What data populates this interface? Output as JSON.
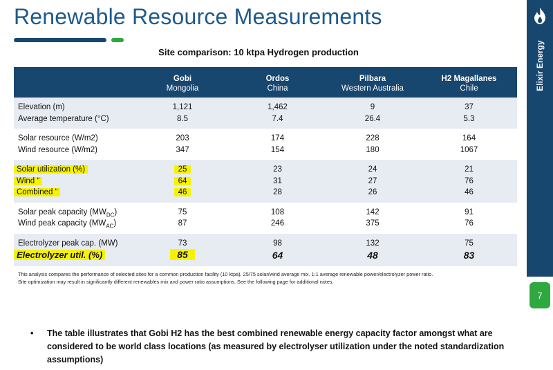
{
  "slide": {
    "title": "Renewable Resource Measurements",
    "caption": "Site comparison: 10 ktpa Hydrogen production",
    "brand": "Elixir Energy",
    "page_number": "7"
  },
  "colors": {
    "navy": "#17466f",
    "title_blue": "#1e5a8c",
    "green": "#2fa93f",
    "row_shade": "#e7ebf2",
    "highlight": "#f7f300"
  },
  "table": {
    "columns": [
      {
        "name": "Gobi",
        "sub": "Mongolia"
      },
      {
        "name": "Ordos",
        "sub": "China"
      },
      {
        "name": "Pilbara",
        "sub": "Western Australia"
      },
      {
        "name": "H2 Magallanes",
        "sub": "Chile"
      }
    ],
    "rows": {
      "elevation": {
        "label": "Elevation (m)",
        "values": [
          "1,121",
          "1,462",
          "9",
          "37"
        ]
      },
      "avg_temp": {
        "label": "Average temperature (°C)",
        "values": [
          "8.5",
          "7.4",
          "26.4",
          "5.3"
        ]
      },
      "solar_res": {
        "label": "Solar resource (W/m2)",
        "values": [
          "203",
          "174",
          "228",
          "164"
        ]
      },
      "wind_res": {
        "label": "Wind resource (W/m2)",
        "values": [
          "347",
          "154",
          "180",
          "1067"
        ]
      },
      "solar_util": {
        "label": "Solar utilization (%)",
        "values": [
          "25",
          "23",
          "24",
          "21"
        ]
      },
      "wind_util": {
        "label": "Wind “",
        "values": [
          "64",
          "31",
          "27",
          "76"
        ]
      },
      "combined": {
        "label": "Combined “",
        "values": [
          "46",
          "28",
          "26",
          "46"
        ]
      },
      "solar_peak": {
        "label_pre": "Solar peak capacity (MW",
        "label_sub": "DC",
        "label_post": ")",
        "values": [
          "75",
          "108",
          "142",
          "91"
        ]
      },
      "wind_peak": {
        "label_pre": "Wind peak capacity (MW",
        "label_sub": "AC",
        "label_post": ")",
        "values": [
          "87",
          "246",
          "375",
          "76"
        ]
      },
      "elec_cap": {
        "label": "Electrolyzer peak cap. (MW)",
        "values": [
          "73",
          "98",
          "132",
          "75"
        ]
      },
      "elec_util": {
        "label": "Electrolyzer util. (%)",
        "values": [
          "85",
          "64",
          "48",
          "83"
        ]
      }
    }
  },
  "footnote": {
    "line1": "This analysis compares the performance of selected sites for a common production facility (10 ktpa), 25/75 solar/wind average mix.  1:1 average renewable power/electrolyzer power ratio.",
    "line2": "Site optimization may result in significantly different renewables mix and power ratio assumptions.  See the following page for additional notes."
  },
  "bullet": {
    "symbol": "•",
    "text": "The table illustrates that Gobi H2 has the best combined renewable energy capacity factor amongst what are considered to be world class locations (as measured by electrolyser utilization under the noted standardization assumptions)"
  }
}
